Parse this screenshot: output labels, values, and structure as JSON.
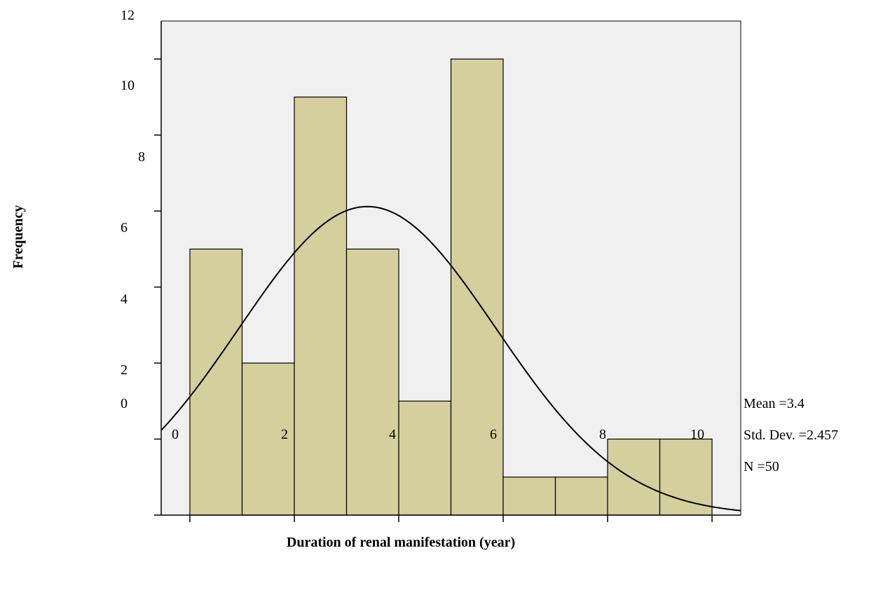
{
  "chart_data": {
    "type": "bar",
    "subtype": "histogram",
    "x": [
      0.5,
      1.5,
      2.5,
      3.5,
      4.5,
      5.5,
      6.5,
      7.5,
      8.5,
      9.5
    ],
    "bin_edges": [
      0,
      1,
      2,
      3,
      4,
      5,
      6,
      7,
      8,
      9,
      10
    ],
    "values": [
      7,
      4,
      11,
      7,
      3,
      12,
      1,
      1,
      2,
      2
    ],
    "xlabel": "Duration of renal manifestation (year)",
    "ylabel": "Frequency",
    "xlim": [
      -0.55,
      10.55
    ],
    "ylim": [
      0,
      13
    ],
    "x_tick_labels": [
      "0",
      "2",
      "4",
      "6",
      "8",
      "10"
    ],
    "y_tick_labels": [
      "12",
      "10",
      "8",
      "6",
      "4",
      "2",
      "0"
    ],
    "normal_curve": {
      "mean": 3.4,
      "std": 2.457,
      "n": 50,
      "bin_width": 1
    },
    "stats": [
      "Mean =3.4",
      "Std. Dev. =2.457",
      "N =50"
    ],
    "colors": {
      "bar_fill": "#d4cf9c",
      "plot_background": "#f0f0f0",
      "line": "#000000"
    },
    "grid": false
  }
}
